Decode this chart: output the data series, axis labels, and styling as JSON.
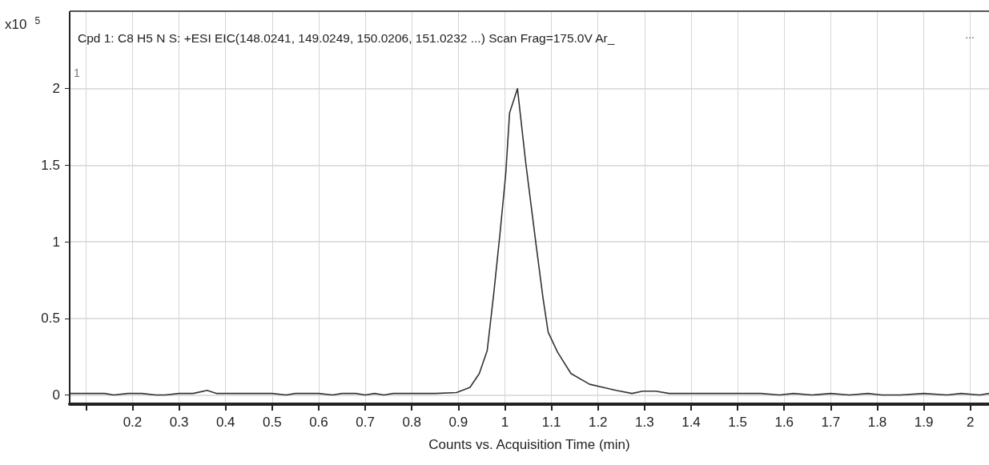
{
  "chart_data": {
    "type": "line",
    "title": "Cpd 1: C8 H5 N S: +ESI EIC(148.0241, 149.0249, 150.0206, 151.0232 ...) Scan Frag=175.0V Ar_",
    "xlabel": "Counts vs. Acquisition Time (min)",
    "ylabel": "x10$^{5}$",
    "annotations": [
      "1",
      "..."
    ],
    "x": [
      0.065,
      0.1,
      0.14,
      0.16,
      0.19,
      0.22,
      0.25,
      0.27,
      0.3,
      0.33,
      0.36,
      0.38,
      0.42,
      0.46,
      0.5,
      0.53,
      0.55,
      0.6,
      0.63,
      0.65,
      0.68,
      0.7,
      0.72,
      0.74,
      0.76,
      0.8,
      0.85,
      0.896,
      0.925,
      0.945,
      0.962,
      0.976,
      0.99,
      1.002,
      1.01,
      1.027,
      1.045,
      1.067,
      1.082,
      1.093,
      1.113,
      1.142,
      1.182,
      1.239,
      1.273,
      1.296,
      1.324,
      1.353,
      1.4,
      1.45,
      1.5,
      1.55,
      1.59,
      1.62,
      1.66,
      1.7,
      1.74,
      1.78,
      1.81,
      1.85,
      1.9,
      1.95,
      1.98,
      2.02,
      2.04
    ],
    "series": [
      {
        "color": "#333333",
        "values": [
          0.01,
          0.01,
          0.01,
          0.0,
          0.01,
          0.01,
          0.0,
          0.0,
          0.01,
          0.01,
          0.03,
          0.01,
          0.01,
          0.01,
          0.01,
          0.0,
          0.01,
          0.01,
          0.0,
          0.01,
          0.01,
          0.0,
          0.01,
          0.0,
          0.01,
          0.01,
          0.01,
          0.016,
          0.05,
          0.14,
          0.29,
          0.66,
          1.07,
          1.45,
          1.84,
          2.0,
          1.51,
          0.98,
          0.63,
          0.41,
          0.28,
          0.14,
          0.07,
          0.03,
          0.01,
          0.025,
          0.025,
          0.01,
          0.01,
          0.01,
          0.01,
          0.01,
          0.0,
          0.01,
          0.0,
          0.01,
          0.0,
          0.01,
          0.0,
          0.0,
          0.01,
          0.0,
          0.01,
          0.0,
          0.01
        ]
      }
    ],
    "xlim": [
      0.065,
      2.04
    ],
    "ylim": [
      -0.06,
      2.5
    ],
    "xticks": [
      {
        "value": 0.1,
        "label": null
      },
      0.2,
      0.3,
      0.4,
      0.5,
      0.6,
      0.7,
      0.8,
      0.9,
      1,
      1.1,
      1.2,
      1.3,
      1.4,
      1.5,
      1.6,
      1.7,
      1.8,
      1.9,
      2
    ],
    "yticks": [
      0,
      0.5,
      1,
      1.5,
      2
    ],
    "grid": true,
    "marker": "none",
    "line_style": "solid"
  }
}
